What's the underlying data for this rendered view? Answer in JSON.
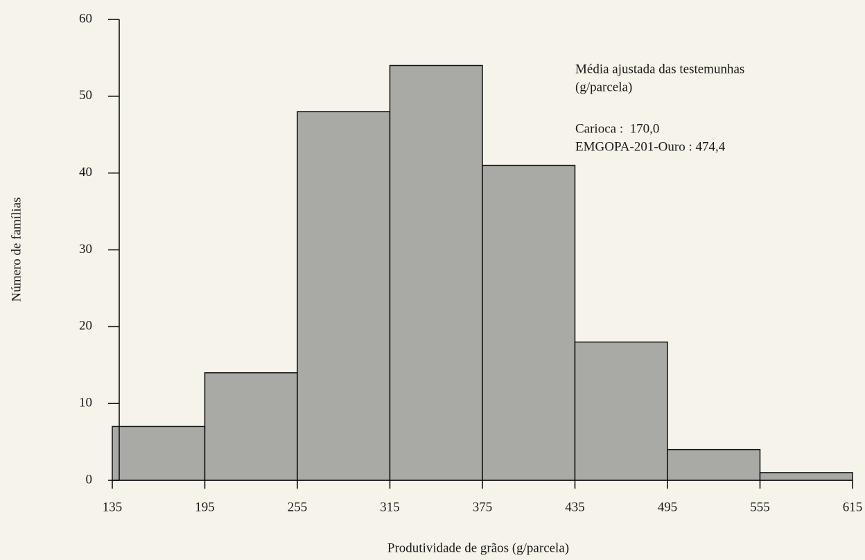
{
  "chart_data": {
    "type": "histogram",
    "xlabel": "Produtividade de grãos (g/parcela)",
    "ylabel": "Número de famílias",
    "bins": [
      135,
      195,
      255,
      315,
      375,
      435,
      495,
      555,
      615
    ],
    "values": [
      7,
      14,
      48,
      54,
      41,
      18,
      4,
      1
    ],
    "color": "#a9a9a6",
    "xlim": [
      135,
      615
    ],
    "xticks": [
      135,
      195,
      255,
      315,
      375,
      435,
      495,
      555,
      615
    ],
    "ylim": [
      0,
      60
    ],
    "yticks": [
      0,
      10,
      20,
      30,
      40,
      50,
      60
    ],
    "annotations": [
      "Média ajustada das testemunhas",
      "(g/parcela)",
      "Carioca :  170,0",
      "EMGOPA-201-Ouro : 474,4"
    ]
  }
}
